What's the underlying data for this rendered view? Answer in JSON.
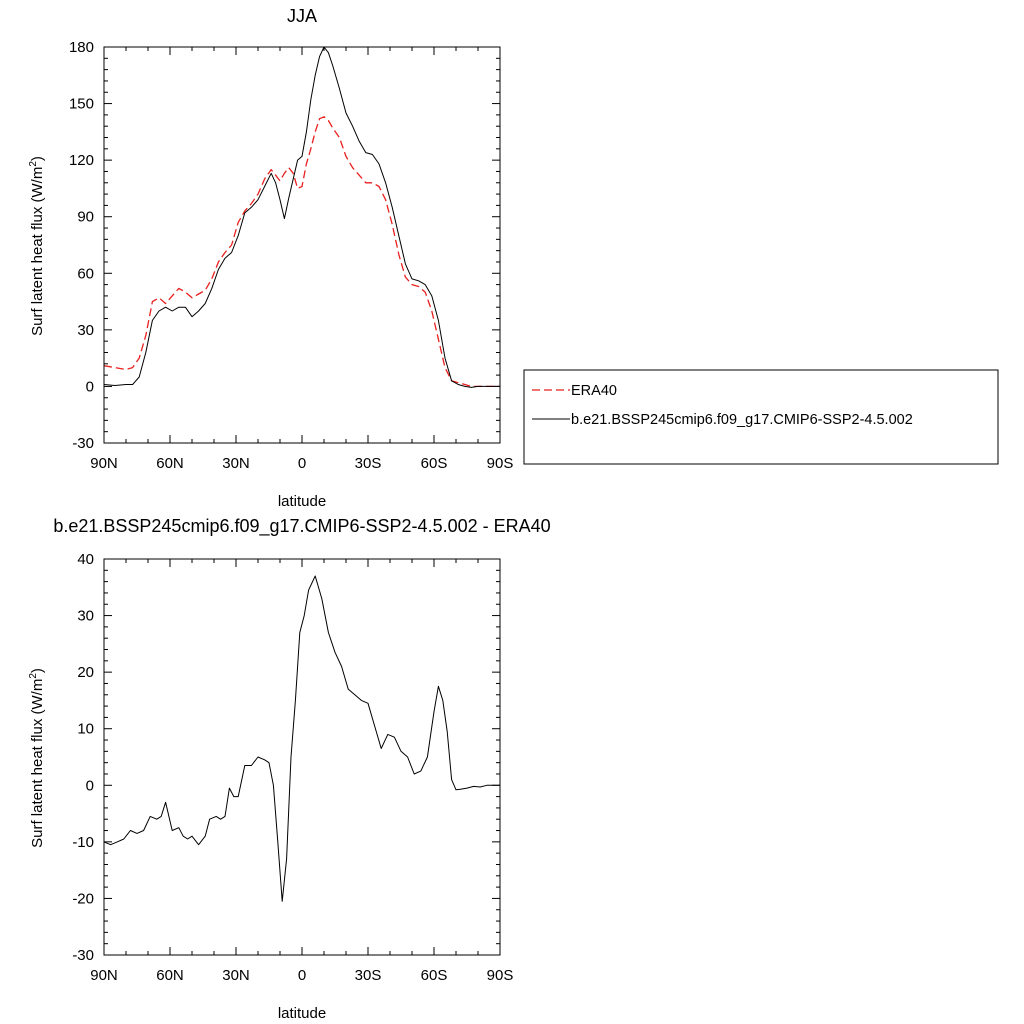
{
  "chart_data": [
    {
      "type": "line",
      "title": "JJA",
      "xlabel": "latitude",
      "ylabel": "Surf latent heat flux (W/m",
      "ylabel_sup": "2",
      "ylabel_end": ")",
      "xlim": [
        -90,
        90
      ],
      "ylim": [
        -30,
        180
      ],
      "xticks": [
        -90,
        -60,
        -30,
        0,
        30,
        60,
        90
      ],
      "xtick_labels": [
        "90N",
        "60N",
        "30N",
        "0",
        "30S",
        "60S",
        "90S"
      ],
      "yticks": [
        -30,
        0,
        30,
        60,
        90,
        120,
        150,
        180
      ],
      "ytick_labels": [
        "-30",
        "0",
        "30",
        "60",
        "90",
        "120",
        "150",
        "180"
      ],
      "grid": false,
      "legend": {
        "position": "right"
      },
      "series": [
        {
          "name": "ERA40",
          "color": "#e8201e",
          "dash": "dashed",
          "x": [
            -90,
            -85,
            -80,
            -77,
            -74,
            -71,
            -68,
            -65,
            -62,
            -59,
            -56,
            -53,
            -50,
            -47,
            -44,
            -41,
            -38,
            -35,
            -32,
            -29,
            -26,
            -23,
            -20,
            -17,
            -14,
            -12,
            -10,
            -8,
            -6,
            -4,
            -2,
            0,
            2,
            4,
            6,
            8,
            10,
            12,
            14,
            17,
            20,
            23,
            26,
            29,
            32,
            35,
            38,
            41,
            44,
            47,
            50,
            53,
            56,
            59,
            62,
            65,
            68,
            71,
            74,
            77,
            80,
            83,
            86,
            90
          ],
          "y": [
            11,
            10,
            9,
            10,
            15,
            27,
            45,
            47,
            44,
            48,
            52,
            50,
            47,
            49,
            51,
            57,
            66,
            71,
            75,
            87,
            93,
            97,
            102,
            110,
            115,
            112,
            109,
            113,
            116,
            113,
            105,
            106,
            118,
            126,
            135,
            142,
            143,
            141,
            137,
            132,
            122,
            116,
            112,
            108,
            108,
            106,
            99,
            86,
            70,
            58,
            54,
            53,
            50,
            40,
            25,
            10,
            3,
            2,
            1,
            0,
            0,
            0,
            0,
            0
          ]
        },
        {
          "name": "b.e21.BSSP245cmip6.f09_g17.CMIP6-SSP2-4.5.002",
          "color": "#000000",
          "dash": "solid",
          "x": [
            -90,
            -85,
            -80,
            -77,
            -74,
            -71,
            -68,
            -65,
            -62,
            -59,
            -56,
            -53,
            -50,
            -47,
            -44,
            -41,
            -38,
            -35,
            -32,
            -29,
            -26,
            -23,
            -20,
            -17,
            -14,
            -12,
            -10,
            -8,
            -6,
            -4,
            -2,
            0,
            2,
            4,
            6,
            8,
            10,
            12,
            14,
            17,
            20,
            23,
            26,
            29,
            32,
            35,
            38,
            41,
            44,
            47,
            50,
            53,
            56,
            59,
            62,
            65,
            68,
            71,
            74,
            77,
            80,
            83,
            86,
            90
          ],
          "y": [
            1,
            0.5,
            1,
            1,
            5,
            18,
            35,
            40,
            42,
            40,
            42,
            42,
            37,
            40,
            44,
            52,
            62,
            68,
            71,
            80,
            92,
            95,
            99,
            106,
            113,
            108,
            99,
            89,
            100,
            110,
            120,
            122,
            135,
            152,
            165,
            175,
            180,
            177,
            170,
            158,
            145,
            138,
            130,
            124,
            123,
            118,
            108,
            95,
            80,
            65,
            57,
            56,
            54,
            48,
            35,
            15,
            3,
            1,
            0,
            -0.5,
            0,
            0,
            0,
            0
          ]
        }
      ]
    },
    {
      "type": "line",
      "title": "b.e21.BSSP245cmip6.f09_g17.CMIP6-SSP2-4.5.002 - ERA40",
      "xlabel": "latitude",
      "ylabel": "Surf latent heat flux (W/m",
      "ylabel_sup": "2",
      "ylabel_end": ")",
      "xlim": [
        -90,
        90
      ],
      "ylim": [
        -30,
        40
      ],
      "xticks": [
        -90,
        -60,
        -30,
        0,
        30,
        60,
        90
      ],
      "xtick_labels": [
        "90N",
        "60N",
        "30N",
        "0",
        "30S",
        "60S",
        "90S"
      ],
      "yticks": [
        -30,
        -20,
        -10,
        0,
        10,
        20,
        30,
        40
      ],
      "ytick_labels": [
        "-30",
        "-20",
        "-10",
        "0",
        "10",
        "20",
        "30",
        "40"
      ],
      "grid": false,
      "series": [
        {
          "color": "#000000",
          "dash": "solid",
          "x": [
            -90,
            -87,
            -84,
            -81,
            -78,
            -75,
            -72,
            -69,
            -66,
            -64,
            -62,
            -59,
            -56,
            -54,
            -52,
            -50,
            -47,
            -44,
            -42,
            -39,
            -37,
            -35,
            -33,
            -31,
            -29,
            -26,
            -23,
            -20,
            -17,
            -15,
            -13,
            -11,
            -9,
            -7,
            -5,
            -3,
            -1,
            1,
            3,
            6,
            9,
            12,
            15,
            18,
            21,
            24,
            27,
            30,
            33,
            36,
            39,
            42,
            45,
            48,
            51,
            54,
            57,
            60,
            62,
            64,
            66,
            68,
            70,
            72,
            75,
            78,
            81,
            84,
            87,
            90
          ],
          "y": [
            -10,
            -10.5,
            -10,
            -9.5,
            -8,
            -8.5,
            -8,
            -5.5,
            -6,
            -5.5,
            -3,
            -8,
            -7.5,
            -9,
            -9.5,
            -9,
            -10.5,
            -9,
            -6,
            -5.5,
            -6,
            -5.5,
            -0.5,
            -2,
            -2,
            3.5,
            3.5,
            5,
            4.5,
            4,
            0,
            -10,
            -20.5,
            -13,
            5,
            15,
            27,
            30,
            34.5,
            37,
            33,
            27,
            23.5,
            21,
            17,
            16,
            15,
            14.5,
            10.5,
            6.5,
            9,
            8.5,
            6,
            5,
            2,
            2.5,
            5,
            13,
            17.5,
            15,
            9.5,
            1,
            -0.8,
            -0.7,
            -0.5,
            -0.2,
            -0.3,
            0,
            0,
            0
          ]
        }
      ]
    }
  ]
}
